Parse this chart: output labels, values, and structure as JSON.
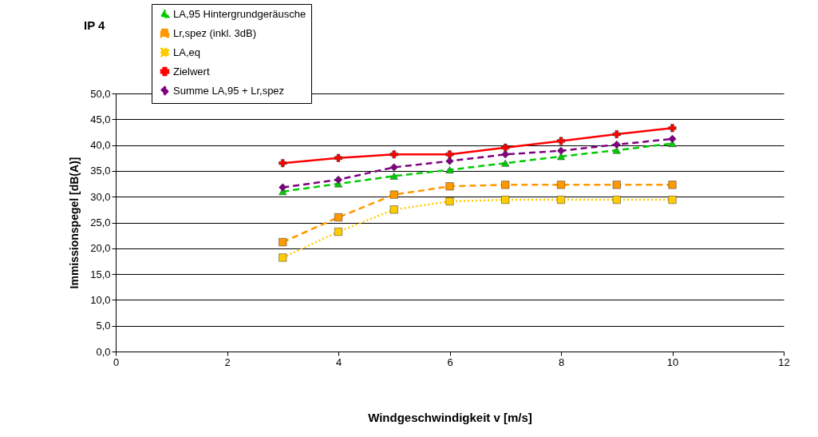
{
  "chart_data": {
    "type": "line",
    "title": "IP 4",
    "xlabel": "Windgeschwindigkeit v [m/s]",
    "ylabel": "Immissionspegel [dB(A)]",
    "x": [
      3,
      4,
      5,
      6,
      7,
      8,
      9,
      10
    ],
    "xlim": [
      0,
      12
    ],
    "xticks": [
      0,
      2,
      4,
      6,
      8,
      10,
      12
    ],
    "ylim": [
      0,
      50
    ],
    "yticks": [
      {
        "value": 0,
        "label": "0,0"
      },
      {
        "value": 5,
        "label": "5,0"
      },
      {
        "value": 10,
        "label": "10,0"
      },
      {
        "value": 15,
        "label": "15,0"
      },
      {
        "value": 20,
        "label": "20,0"
      },
      {
        "value": 25,
        "label": "25,0"
      },
      {
        "value": 30,
        "label": "30,0"
      },
      {
        "value": 35,
        "label": "35,0"
      },
      {
        "value": 40,
        "label": "40,0"
      },
      {
        "value": 45,
        "label": "45,0"
      },
      {
        "value": 50,
        "label": "50,0"
      }
    ],
    "grid": "y",
    "legend": "top",
    "series": [
      {
        "name": "LA,95 Hintergrundgeräusche",
        "color": "#00cc00",
        "marker": "triangle",
        "line_style": "dashed",
        "values": [
          31.0,
          32.5,
          34.0,
          35.2,
          36.5,
          37.8,
          39.0,
          40.3
        ]
      },
      {
        "name": "Lr,spez (inkl. 3dB)",
        "color": "#ff9900",
        "marker": "square",
        "line_style": "dashed",
        "values": [
          21.2,
          26.0,
          30.4,
          32.0,
          32.3,
          32.3,
          32.3,
          32.3
        ]
      },
      {
        "name": "LA,eq",
        "color": "#ffcc00",
        "marker": "square",
        "line_style": "dotted",
        "values": [
          18.2,
          23.2,
          27.5,
          29.1,
          29.4,
          29.4,
          29.4,
          29.4
        ]
      },
      {
        "name": "Zielwert",
        "color": "#ff0000",
        "marker": "cross",
        "line_style": "solid",
        "values": [
          36.5,
          37.5,
          38.2,
          38.2,
          39.5,
          40.8,
          42.1,
          43.3
        ]
      },
      {
        "name": "Summe LA,95 + Lr,spez",
        "color": "#800080",
        "marker": "diamond",
        "line_style": "dashed",
        "values": [
          31.8,
          33.3,
          35.7,
          36.9,
          38.2,
          38.9,
          40.1,
          41.2
        ]
      }
    ]
  }
}
